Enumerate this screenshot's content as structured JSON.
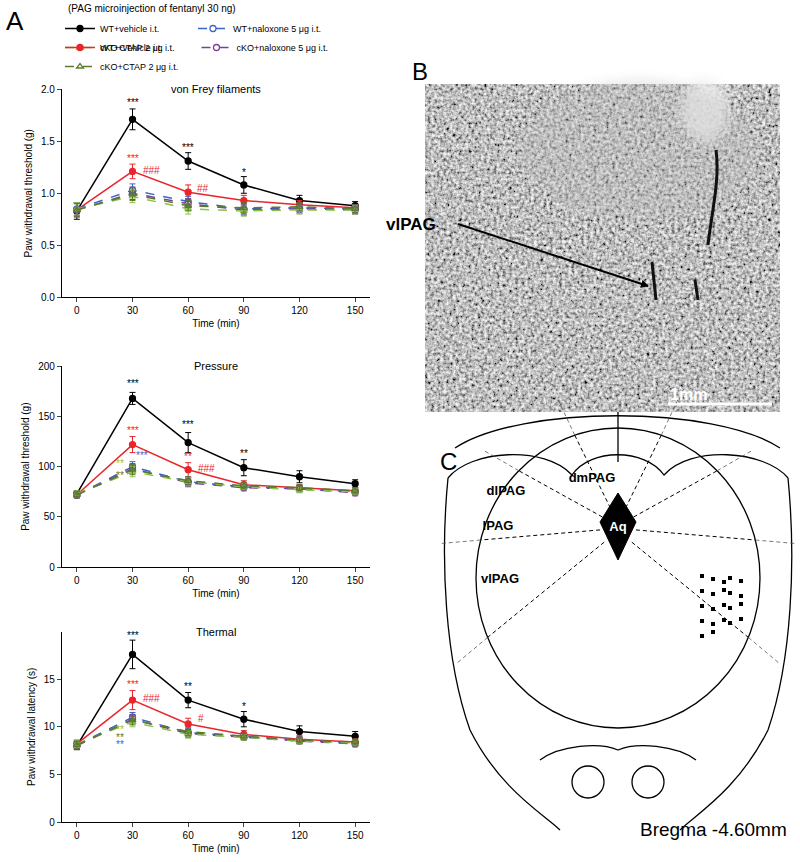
{
  "figure": {
    "panel_labels": [
      "A",
      "B",
      "C"
    ],
    "header": "(PAG microinjection of fentanyl 30 ng)",
    "panel_b": {
      "label": "vlPAG",
      "scale_bar": "1mm"
    },
    "panel_c": {
      "regions": [
        "dmPAG",
        "dlPAG",
        "lPAG",
        "vlPAG"
      ],
      "aqueduct": "Aq",
      "caption": "Bregma -4.60mm"
    }
  },
  "chart_data": [
    {
      "type": "line",
      "title": "von Frey filaments",
      "x_label": "Time (min)",
      "y_label": "Paw withdrawal threshold (g)",
      "x": [
        0,
        30,
        60,
        90,
        120,
        150
      ],
      "xlim": [
        -8,
        158
      ],
      "xticks": [
        0,
        30,
        60,
        90,
        120,
        150
      ],
      "ylim": [
        0,
        2
      ],
      "yticks": [
        {
          "value": 0,
          "label": "0.0"
        },
        0.5,
        {
          "value": 1,
          "label": "1.0"
        },
        1.5,
        {
          "value": 2,
          "label": "2.0"
        }
      ],
      "grid": false,
      "legend": "top",
      "series": [
        {
          "name": "WT+vehicle i.t.",
          "color": "#000000",
          "marker": "circle",
          "line_style": "solid",
          "values": [
            0.83,
            1.71,
            1.31,
            1.08,
            0.93,
            0.88
          ],
          "error": [
            0.08,
            0.1,
            0.08,
            0.08,
            0.05,
            0.04
          ]
        },
        {
          "name": "cKO+vehicle i.t.",
          "color": "#e8262b",
          "marker": "circle",
          "line_style": "solid",
          "values": [
            0.84,
            1.21,
            1.01,
            0.93,
            0.89,
            0.86
          ],
          "error": [
            0.07,
            0.07,
            0.07,
            0.05,
            0.04,
            0.03
          ]
        },
        {
          "name": "WT+naloxone 5 μg i.t.",
          "color": "#3a66c4",
          "marker": "open_circle",
          "line_style": "dashed",
          "values": [
            0.85,
            1.03,
            0.92,
            0.85,
            0.86,
            0.85
          ],
          "error": [
            0.06,
            0.06,
            0.05,
            0.05,
            0.04,
            0.04
          ]
        },
        {
          "name": "cKO+naloxone 5 μg i.t.",
          "color": "#7e3d9c",
          "marker": "open_circle",
          "line_style": "dashed",
          "values": [
            0.84,
            1.0,
            0.9,
            0.84,
            0.85,
            0.84
          ],
          "error": [
            0.06,
            0.06,
            0.05,
            0.05,
            0.04,
            0.04
          ]
        },
        {
          "name": "WT+CTAP 2 μg i.t.",
          "color": "#8bc34a",
          "marker": "open_triangle",
          "line_style": "dashed",
          "values": [
            0.85,
            0.97,
            0.85,
            0.83,
            0.84,
            0.84
          ],
          "error": [
            0.06,
            0.06,
            0.05,
            0.05,
            0.04,
            0.04
          ]
        },
        {
          "name": "cKO+CTAP 2 μg i.t.",
          "color": "#5b7a2e",
          "marker": "open_triangle",
          "line_style": "dashed",
          "values": [
            0.84,
            0.99,
            0.88,
            0.86,
            0.87,
            0.85
          ],
          "error": [
            0.06,
            0.06,
            0.05,
            0.05,
            0.04,
            0.04
          ]
        }
      ],
      "annotations": [
        {
          "x": 30,
          "y": 1.87,
          "text": "***",
          "color": "#000000"
        },
        {
          "x": 60,
          "y": 1.44,
          "text": "***",
          "color": "#000000"
        },
        {
          "x": 90,
          "y": 1.2,
          "text": "*",
          "color": "#000000"
        },
        {
          "x": 30,
          "y": 1.33,
          "text": "***",
          "color": "#e8262b"
        },
        {
          "x": 40,
          "y": 1.22,
          "text": "###",
          "color": "#e8262b"
        },
        {
          "x": 68,
          "y": 1.05,
          "text": "##",
          "color": "#e8262b"
        }
      ]
    },
    {
      "type": "line",
      "title": "Pressure",
      "x_label": "Time (min)",
      "y_label": "Paw withdrawal threshold (g)",
      "x": [
        0,
        30,
        60,
        90,
        120,
        150
      ],
      "xlim": [
        -8,
        158
      ],
      "xticks": [
        0,
        30,
        60,
        90,
        120,
        150
      ],
      "ylim": [
        0,
        200
      ],
      "yticks": [
        0,
        50,
        100,
        150,
        200
      ],
      "grid": false,
      "series": [
        {
          "name": "WT+vehicle i.t.",
          "color": "#000000",
          "marker": "circle",
          "line_style": "solid",
          "values": [
            73,
            168,
            124,
            99,
            90,
            83
          ],
          "error": [
            3,
            6,
            10,
            8,
            6,
            4
          ]
        },
        {
          "name": "cKO+vehicle i.t.",
          "color": "#e8262b",
          "marker": "circle",
          "line_style": "solid",
          "values": [
            72,
            122,
            97,
            82,
            79,
            76
          ],
          "error": [
            3,
            8,
            7,
            4,
            3,
            3
          ]
        },
        {
          "name": "WT+naloxone 5 μg i.t.",
          "color": "#3a66c4",
          "marker": "open_circle",
          "line_style": "dashed",
          "values": [
            72,
            100,
            85,
            80,
            78,
            75
          ],
          "error": [
            3,
            5,
            4,
            3,
            3,
            3
          ]
        },
        {
          "name": "cKO+naloxone 5 μg i.t.",
          "color": "#7e3d9c",
          "marker": "open_circle",
          "line_style": "dashed",
          "values": [
            72,
            98,
            84,
            79,
            78,
            74
          ],
          "error": [
            3,
            5,
            4,
            3,
            3,
            3
          ]
        },
        {
          "name": "WT+CTAP 2 μg i.t.",
          "color": "#8bc34a",
          "marker": "open_triangle",
          "line_style": "dashed",
          "values": [
            73,
            95,
            85,
            80,
            77,
            75
          ],
          "error": [
            3,
            5,
            4,
            3,
            3,
            3
          ]
        },
        {
          "name": "cKO+CTAP 2 μg i.t.",
          "color": "#5b7a2e",
          "marker": "open_triangle",
          "line_style": "dashed",
          "values": [
            72,
            97,
            86,
            81,
            79,
            76
          ],
          "error": [
            3,
            5,
            4,
            3,
            3,
            3
          ]
        }
      ],
      "annotations": [
        {
          "x": 30,
          "y": 183,
          "text": "***",
          "color": "#000000"
        },
        {
          "x": 60,
          "y": 142,
          "text": "***",
          "color": "#000000"
        },
        {
          "x": 90,
          "y": 113,
          "text": "**",
          "color": "#000000"
        },
        {
          "x": 30,
          "y": 136,
          "text": "***",
          "color": "#e8262b"
        },
        {
          "x": 60,
          "y": 110,
          "text": "**",
          "color": "#e8262b"
        },
        {
          "x": 70,
          "y": 98,
          "text": "###",
          "color": "#e8262b"
        },
        {
          "x": 35,
          "y": 111,
          "text": "***",
          "color": "#3a66c4"
        },
        {
          "x": 23,
          "y": 103,
          "text": "**",
          "color": "#8bc34a"
        },
        {
          "x": 23,
          "y": 91,
          "text": "**",
          "color": "#5b7a2e"
        }
      ]
    },
    {
      "type": "line",
      "title": "Thermal",
      "x_label": "Time (min)",
      "y_label": "Paw withdrawal latency (s)",
      "x": [
        0,
        30,
        60,
        90,
        120,
        150
      ],
      "xlim": [
        -8,
        158
      ],
      "xticks": [
        0,
        30,
        60,
        90,
        120,
        150
      ],
      "ylim": [
        0,
        20
      ],
      "yticks": [
        0,
        5,
        10,
        15
      ],
      "grid": false,
      "series": [
        {
          "name": "WT+vehicle i.t.",
          "color": "#000000",
          "marker": "circle",
          "line_style": "solid",
          "values": [
            8.0,
            17.6,
            12.8,
            10.8,
            9.5,
            9.0
          ],
          "error": [
            0.4,
            1.5,
            0.8,
            0.8,
            0.6,
            0.5
          ]
        },
        {
          "name": "cKO+vehicle i.t.",
          "color": "#e8262b",
          "marker": "circle",
          "line_style": "solid",
          "values": [
            8.2,
            12.8,
            10.3,
            9.2,
            8.7,
            8.4
          ],
          "error": [
            0.4,
            1.0,
            0.6,
            0.4,
            0.4,
            0.3
          ]
        },
        {
          "name": "WT+naloxone 5 μg i.t.",
          "color": "#3a66c4",
          "marker": "open_circle",
          "line_style": "dashed",
          "values": [
            8.1,
            11.0,
            9.4,
            9.0,
            8.6,
            8.3
          ],
          "error": [
            0.4,
            0.5,
            0.4,
            0.3,
            0.3,
            0.3
          ]
        },
        {
          "name": "cKO+naloxone 5 μg i.t.",
          "color": "#7e3d9c",
          "marker": "open_circle",
          "line_style": "dashed",
          "values": [
            8.0,
            10.8,
            9.3,
            8.9,
            8.5,
            8.2
          ],
          "error": [
            0.4,
            0.5,
            0.4,
            0.3,
            0.3,
            0.3
          ]
        },
        {
          "name": "WT+CTAP 2 μg i.t.",
          "color": "#8bc34a",
          "marker": "open_triangle",
          "line_style": "dashed",
          "values": [
            8.2,
            10.5,
            9.2,
            8.9,
            8.5,
            8.3
          ],
          "error": [
            0.4,
            0.5,
            0.4,
            0.3,
            0.3,
            0.3
          ]
        },
        {
          "name": "cKO+CTAP 2 μg i.t.",
          "color": "#5b7a2e",
          "marker": "open_triangle",
          "line_style": "dashed",
          "values": [
            8.1,
            10.7,
            9.5,
            9.0,
            8.6,
            8.4
          ],
          "error": [
            0.4,
            0.5,
            0.4,
            0.3,
            0.3,
            0.3
          ]
        }
      ],
      "annotations": [
        {
          "x": 30,
          "y": 19.6,
          "text": "***",
          "color": "#000000"
        },
        {
          "x": 60,
          "y": 14.2,
          "text": "**",
          "color": "#000000"
        },
        {
          "x": 90,
          "y": 12.1,
          "text": "*",
          "color": "#000000"
        },
        {
          "x": 30,
          "y": 14.4,
          "text": "***",
          "color": "#e8262b"
        },
        {
          "x": 40,
          "y": 13.0,
          "text": "###",
          "color": "#e8262b"
        },
        {
          "x": 67,
          "y": 10.9,
          "text": "#",
          "color": "#e8262b"
        },
        {
          "x": 23,
          "y": 9.7,
          "text": "**",
          "color": "#8bc34a"
        },
        {
          "x": 23,
          "y": 8.9,
          "text": "**",
          "color": "#5b7a2e"
        },
        {
          "x": 23,
          "y": 8.1,
          "text": "**",
          "color": "#3a66c4"
        }
      ]
    }
  ]
}
